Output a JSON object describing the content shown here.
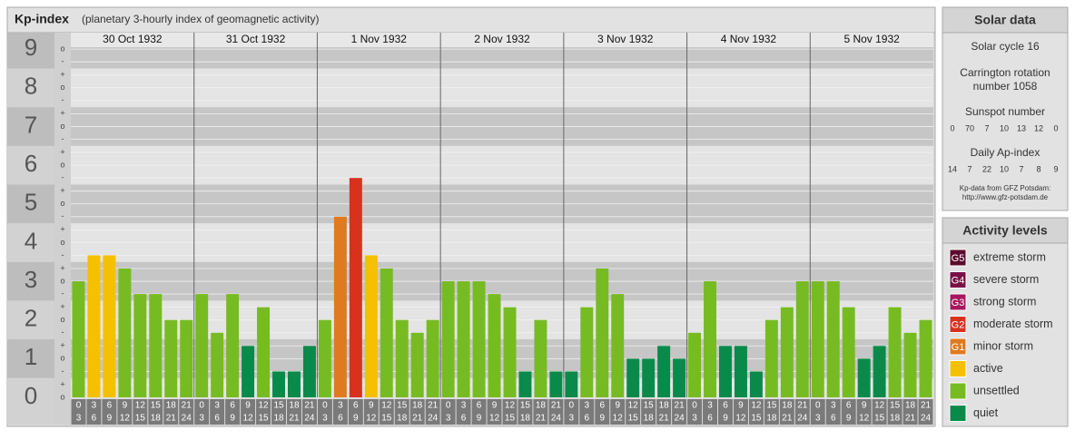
{
  "chart_data": {
    "type": "bar",
    "title": "Kp-index",
    "subtitle": "(planetary 3-hourly index of geomagnetic activity)",
    "ylim": [
      0,
      9.05
    ],
    "yticks": [
      0,
      1,
      2,
      3,
      4,
      5,
      6,
      7,
      8,
      9
    ],
    "minor_ticks": [
      {
        "value": 0,
        "label": "o"
      },
      {
        "value": 0.33,
        "label": "+"
      },
      {
        "value": 0.67,
        "label": "-"
      },
      {
        "value": 1,
        "label": "o"
      },
      {
        "value": 1.33,
        "label": "+"
      },
      {
        "value": 1.67,
        "label": "-"
      },
      {
        "value": 2,
        "label": "o"
      },
      {
        "value": 2.33,
        "label": "+"
      },
      {
        "value": 2.67,
        "label": "-"
      },
      {
        "value": 3,
        "label": "o"
      },
      {
        "value": 3.33,
        "label": "+"
      },
      {
        "value": 3.67,
        "label": "-"
      },
      {
        "value": 4,
        "label": "o"
      },
      {
        "value": 4.33,
        "label": "+"
      },
      {
        "value": 4.67,
        "label": "-"
      },
      {
        "value": 5,
        "label": "o"
      },
      {
        "value": 5.33,
        "label": "+"
      },
      {
        "value": 5.67,
        "label": "-"
      },
      {
        "value": 6,
        "label": "o"
      },
      {
        "value": 6.33,
        "label": "+"
      },
      {
        "value": 6.67,
        "label": "-"
      },
      {
        "value": 7,
        "label": "o"
      },
      {
        "value": 7.33,
        "label": "+"
      },
      {
        "value": 7.67,
        "label": "-"
      },
      {
        "value": 8,
        "label": "o"
      },
      {
        "value": 8.33,
        "label": "+"
      },
      {
        "value": 8.67,
        "label": "-"
      },
      {
        "value": 9,
        "label": "o"
      }
    ],
    "hours": [
      [
        "0",
        "3"
      ],
      [
        "3",
        "6"
      ],
      [
        "6",
        "9"
      ],
      [
        "9",
        "12"
      ],
      [
        "12",
        "15"
      ],
      [
        "15",
        "18"
      ],
      [
        "18",
        "21"
      ],
      [
        "21",
        "24"
      ]
    ],
    "days": [
      {
        "label": "30 Oct 1932",
        "values": [
          3,
          3.67,
          3.67,
          3.33,
          2.67,
          2.67,
          2,
          2
        ],
        "colors": [
          "#77bb22",
          "#f5c000",
          "#f5c000",
          "#77bb22",
          "#77bb22",
          "#77bb22",
          "#77bb22",
          "#77bb22"
        ]
      },
      {
        "label": "31 Oct 1932",
        "values": [
          2.67,
          1.67,
          2.67,
          1.33,
          2.33,
          0.67,
          0.67,
          1.33
        ],
        "colors": [
          "#77bb22",
          "#77bb22",
          "#77bb22",
          "#0a8a4a",
          "#77bb22",
          "#0a8a4a",
          "#0a8a4a",
          "#0a8a4a"
        ]
      },
      {
        "label": "1 Nov 1932",
        "values": [
          2,
          4.67,
          5.67,
          3.67,
          3.33,
          2,
          1.67,
          2
        ],
        "colors": [
          "#77bb22",
          "#e07a1f",
          "#d8321e",
          "#f5c000",
          "#77bb22",
          "#77bb22",
          "#77bb22",
          "#77bb22"
        ]
      },
      {
        "label": "2 Nov 1932",
        "values": [
          3,
          3,
          3,
          2.67,
          2.33,
          0.67,
          2,
          0.67
        ],
        "colors": [
          "#77bb22",
          "#77bb22",
          "#77bb22",
          "#77bb22",
          "#77bb22",
          "#0a8a4a",
          "#77bb22",
          "#0a8a4a"
        ]
      },
      {
        "label": "3 Nov 1932",
        "values": [
          0.67,
          2.33,
          3.33,
          2.67,
          1,
          1,
          1.33,
          1
        ],
        "colors": [
          "#0a8a4a",
          "#77bb22",
          "#77bb22",
          "#77bb22",
          "#0a8a4a",
          "#0a8a4a",
          "#0a8a4a",
          "#0a8a4a"
        ]
      },
      {
        "label": "4 Nov 1932",
        "values": [
          1.67,
          3,
          1.33,
          1.33,
          0.67,
          2,
          2.33,
          3
        ],
        "colors": [
          "#77bb22",
          "#77bb22",
          "#0a8a4a",
          "#0a8a4a",
          "#0a8a4a",
          "#77bb22",
          "#77bb22",
          "#77bb22"
        ]
      },
      {
        "label": "5 Nov 1932",
        "values": [
          3,
          3,
          2.33,
          1,
          1.33,
          2.33,
          1.67,
          2
        ],
        "colors": [
          "#77bb22",
          "#77bb22",
          "#77bb22",
          "#0a8a4a",
          "#0a8a4a",
          "#77bb22",
          "#77bb22",
          "#77bb22"
        ]
      }
    ]
  },
  "solar_data": {
    "title": "Solar data",
    "cycle": "Solar cycle 16",
    "carrington": [
      "Carrington rotation",
      "number 1058"
    ],
    "sunspot_title": "Sunspot number",
    "sunspot_numbers": [
      0,
      70,
      7,
      10,
      13,
      12,
      0
    ],
    "ap_title": "Daily Ap-index",
    "ap_values": [
      14,
      7,
      22,
      10,
      7,
      8,
      9
    ],
    "source": [
      "Kp-data from GFZ Potsdam:",
      "http://www.gfz-potsdam.de"
    ]
  },
  "activity_levels": {
    "title": "Activity levels",
    "items": [
      {
        "code": "G5",
        "label": "extreme storm",
        "color": "#5c0b2c"
      },
      {
        "code": "G4",
        "label": "severe storm",
        "color": "#7a1046"
      },
      {
        "code": "G3",
        "label": "strong storm",
        "color": "#a8185e"
      },
      {
        "code": "G2",
        "label": "moderate storm",
        "color": "#d8321e"
      },
      {
        "code": "G1",
        "label": "minor storm",
        "color": "#e07a1f"
      },
      {
        "label": "active",
        "color": "#f5c000"
      },
      {
        "label": "unsettled",
        "color": "#77bb22"
      },
      {
        "label": "quiet",
        "color": "#0a8a4a"
      }
    ]
  }
}
